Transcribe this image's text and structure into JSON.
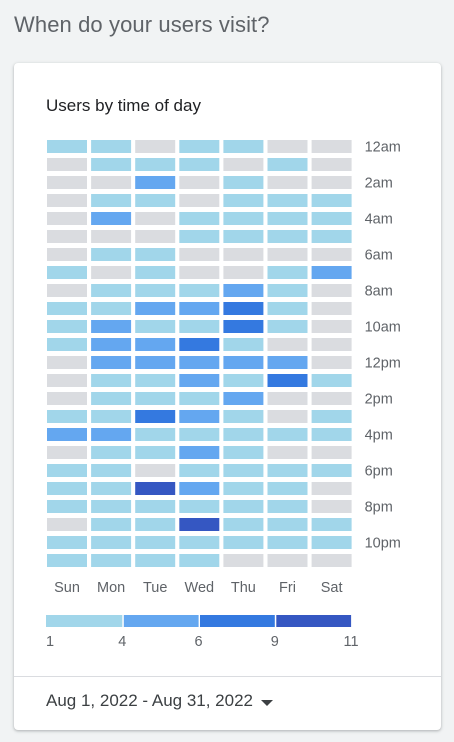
{
  "page": {
    "title": "When do your users visit?"
  },
  "card": {
    "title": "Users by time of day",
    "date_range": "Aug 1, 2022 - Aug 31, 2022",
    "date_dropdown_icon": "caret-down-icon"
  },
  "colors": {
    "empty": "#dadce0",
    "levels": [
      "#a1d6ea",
      "#64a7f0",
      "#3479e0",
      "#3557c2"
    ]
  },
  "chart_data": {
    "type": "heatmap",
    "title": "Users by time of day",
    "x_categories": [
      "Sun",
      "Mon",
      "Tue",
      "Wed",
      "Thu",
      "Fri",
      "Sat"
    ],
    "y_categories": [
      "12am",
      "1am",
      "2am",
      "3am",
      "4am",
      "5am",
      "6am",
      "7am",
      "8am",
      "9am",
      "10am",
      "11am",
      "12pm",
      "1pm",
      "2pm",
      "3pm",
      "4pm",
      "5pm",
      "6pm",
      "7pm",
      "8pm",
      "9pm",
      "10pm",
      "11pm"
    ],
    "y_tick_labels": [
      "12am",
      "",
      "2am",
      "",
      "4am",
      "",
      "6am",
      "",
      "8am",
      "",
      "10am",
      "",
      "12pm",
      "",
      "2pm",
      "",
      "4pm",
      "",
      "6pm",
      "",
      "8pm",
      "",
      "10pm",
      ""
    ],
    "values": [
      [
        1,
        1,
        0,
        1,
        1,
        0,
        0
      ],
      [
        0,
        1,
        1,
        1,
        0,
        1,
        0
      ],
      [
        0,
        0,
        4,
        0,
        1,
        0,
        0
      ],
      [
        0,
        1,
        1,
        0,
        1,
        1,
        1
      ],
      [
        0,
        4,
        0,
        1,
        1,
        1,
        1
      ],
      [
        0,
        0,
        0,
        1,
        1,
        1,
        1
      ],
      [
        0,
        1,
        1,
        0,
        0,
        0,
        0
      ],
      [
        1,
        0,
        1,
        0,
        0,
        1,
        4
      ],
      [
        0,
        1,
        1,
        1,
        4,
        1,
        0
      ],
      [
        1,
        1,
        4,
        4,
        6,
        1,
        0
      ],
      [
        1,
        4,
        1,
        1,
        6,
        1,
        0
      ],
      [
        1,
        4,
        4,
        8,
        1,
        0,
        0
      ],
      [
        0,
        4,
        4,
        4,
        4,
        4,
        0
      ],
      [
        0,
        1,
        1,
        4,
        1,
        7,
        1
      ],
      [
        0,
        1,
        1,
        1,
        4,
        0,
        0
      ],
      [
        1,
        1,
        6,
        4,
        1,
        0,
        1
      ],
      [
        4,
        4,
        1,
        1,
        1,
        1,
        1
      ],
      [
        0,
        1,
        1,
        4,
        1,
        0,
        0
      ],
      [
        1,
        1,
        0,
        1,
        1,
        1,
        1
      ],
      [
        1,
        1,
        10,
        4,
        1,
        1,
        0
      ],
      [
        1,
        1,
        1,
        1,
        1,
        1,
        0
      ],
      [
        0,
        1,
        1,
        10,
        1,
        1,
        1
      ],
      [
        1,
        1,
        1,
        1,
        1,
        1,
        1
      ],
      [
        1,
        1,
        1,
        1,
        0,
        0,
        0
      ]
    ],
    "legend": {
      "tick_labels": [
        "1",
        "4",
        "6",
        "9",
        "11"
      ],
      "thresholds": [
        1,
        4,
        6,
        9,
        11
      ]
    }
  }
}
